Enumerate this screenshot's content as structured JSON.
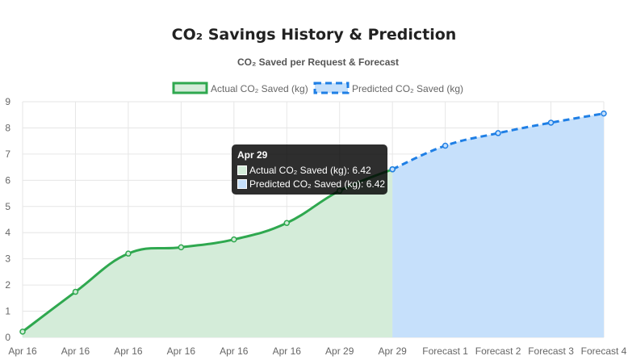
{
  "header": {
    "title": "CO₂ Savings History & Prediction"
  },
  "chart_data": {
    "type": "line",
    "title": "CO₂ Saved per Request & Forecast",
    "xlabel": "",
    "ylabel": "",
    "categories": [
      "Apr 16",
      "Apr 16",
      "Apr 16",
      "Apr 16",
      "Apr 16",
      "Apr 16",
      "Apr 29",
      "Apr 29",
      "Forecast 1",
      "Forecast 2",
      "Forecast 3",
      "Forecast 4"
    ],
    "ylim": [
      0,
      9
    ],
    "yticks": [
      0,
      1,
      2,
      3,
      4,
      5,
      6,
      7,
      8,
      9
    ],
    "grid": true,
    "legend_position": "top",
    "series": [
      {
        "name": "Actual CO₂ Saved (kg)",
        "values": [
          0.22,
          1.74,
          3.2,
          3.44,
          3.74,
          4.37,
          5.6,
          6.42,
          null,
          null,
          null,
          null
        ],
        "color": "#2fa84f",
        "fill": "#d4ecd9",
        "style": "solid"
      },
      {
        "name": "Predicted CO₂ Saved (kg)",
        "values": [
          null,
          null,
          null,
          null,
          null,
          null,
          null,
          6.42,
          7.32,
          7.8,
          8.2,
          8.55
        ],
        "color": "#1f7fe5",
        "fill": "#c6e0fb",
        "style": "dashed"
      }
    ],
    "tooltip": {
      "title": "Apr 29",
      "rows": [
        "Actual CO₂ Saved (kg): 6.42",
        "Predicted CO₂ Saved (kg): 6.42"
      ]
    }
  }
}
